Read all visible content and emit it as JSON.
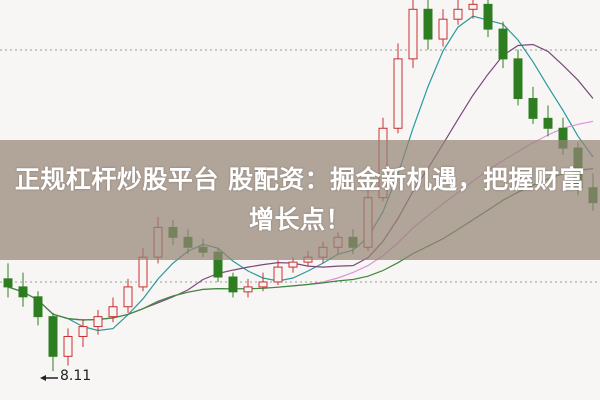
{
  "banner": {
    "title": "正规杠杆炒股平台 股配资：掘金新机遇，把握财富增长点！"
  },
  "chart_data": {
    "type": "candlestick",
    "ohlc": [
      [
        9.6,
        9.85,
        9.3,
        9.47
      ],
      [
        9.47,
        9.7,
        9.15,
        9.31
      ],
      [
        9.31,
        9.4,
        8.85,
        8.99
      ],
      [
        8.99,
        9.05,
        8.11,
        8.35
      ],
      [
        8.35,
        8.8,
        8.2,
        8.67
      ],
      [
        8.67,
        8.95,
        8.5,
        8.83
      ],
      [
        8.83,
        9.1,
        8.7,
        8.99
      ],
      [
        8.99,
        9.3,
        8.9,
        9.15
      ],
      [
        9.15,
        9.6,
        9.05,
        9.47
      ],
      [
        9.47,
        10.1,
        9.4,
        9.95
      ],
      [
        9.95,
        10.6,
        9.85,
        10.43
      ],
      [
        10.43,
        10.55,
        10.15,
        10.27
      ],
      [
        10.27,
        10.4,
        10.0,
        10.11
      ],
      [
        10.11,
        10.25,
        9.95,
        10.03
      ],
      [
        10.03,
        10.1,
        9.55,
        9.63
      ],
      [
        9.63,
        9.7,
        9.3,
        9.39
      ],
      [
        9.39,
        9.6,
        9.3,
        9.47
      ],
      [
        9.47,
        9.7,
        9.4,
        9.55
      ],
      [
        9.55,
        9.9,
        9.5,
        9.79
      ],
      [
        9.79,
        9.95,
        9.7,
        9.87
      ],
      [
        9.87,
        10.05,
        9.8,
        9.95
      ],
      [
        9.95,
        10.2,
        9.85,
        10.11
      ],
      [
        10.11,
        10.35,
        10.0,
        10.27
      ],
      [
        10.27,
        10.4,
        10.0,
        10.11
      ],
      [
        10.11,
        11.1,
        10.05,
        10.91
      ],
      [
        10.91,
        12.2,
        10.85,
        12.03
      ],
      [
        12.03,
        13.4,
        11.95,
        13.15
      ],
      [
        13.15,
        14.2,
        13.0,
        13.95
      ],
      [
        13.95,
        14.1,
        13.3,
        13.47
      ],
      [
        13.47,
        13.95,
        13.35,
        13.79
      ],
      [
        13.79,
        14.15,
        13.7,
        13.95
      ],
      [
        13.95,
        14.25,
        13.8,
        14.03
      ],
      [
        14.03,
        14.1,
        13.5,
        13.63
      ],
      [
        13.63,
        13.75,
        13.0,
        13.15
      ],
      [
        13.15,
        13.3,
        12.4,
        12.51
      ],
      [
        12.51,
        12.7,
        12.1,
        12.19
      ],
      [
        12.19,
        12.4,
        11.9,
        12.03
      ],
      [
        12.03,
        12.2,
        11.6,
        11.71
      ],
      [
        11.71,
        11.8,
        10.95,
        11.07
      ],
      [
        11.07,
        11.3,
        10.7,
        10.83
      ]
    ],
    "moving_averages": [
      {
        "period": 5,
        "color": "#2a9a9a"
      },
      {
        "period": 10,
        "color": "#7a4a7a"
      },
      {
        "period": 20,
        "color": "#e090d8"
      },
      {
        "period": 30,
        "color": "#3a8a3a"
      }
    ],
    "up_color": "#c83030",
    "down_color": "#2e7d20",
    "ylim": [
      8.0,
      14.1
    ],
    "grid": "dotted horizontal",
    "annotations": [
      {
        "text": "8.11",
        "points_to": "low"
      }
    ]
  }
}
